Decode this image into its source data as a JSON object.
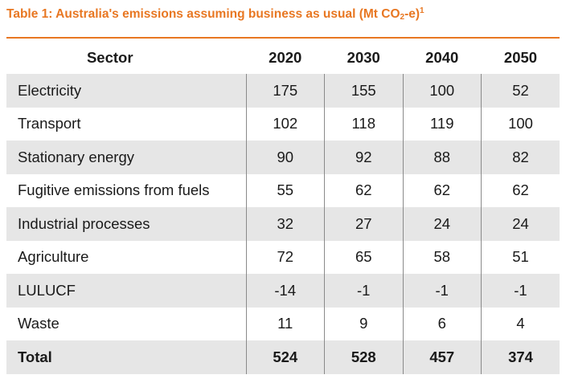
{
  "title": {
    "prefix": "Table 1: Australia's emissions assuming business as usual (Mt CO",
    "subscript": "2",
    "suffix": "-e)",
    "footnote": "1"
  },
  "table": {
    "headers": [
      "Sector",
      "2020",
      "2030",
      "2040",
      "2050"
    ],
    "rows": [
      {
        "sector": "Electricity",
        "values": [
          "175",
          "155",
          "100",
          "52"
        ]
      },
      {
        "sector": "Transport",
        "values": [
          "102",
          "118",
          "119",
          "100"
        ]
      },
      {
        "sector": "Stationary energy",
        "values": [
          "90",
          "92",
          "88",
          "82"
        ]
      },
      {
        "sector": "Fugitive emissions from fuels",
        "values": [
          "55",
          "62",
          "62",
          "62"
        ]
      },
      {
        "sector": "Industrial processes",
        "values": [
          "32",
          "27",
          "24",
          "24"
        ]
      },
      {
        "sector": "Agriculture",
        "values": [
          "72",
          "65",
          "58",
          "51"
        ]
      },
      {
        "sector": "LULUCF",
        "values": [
          "-14",
          "-1",
          "-1",
          "-1"
        ]
      },
      {
        "sector": "Waste",
        "values": [
          "11",
          "9",
          "6",
          "4"
        ]
      },
      {
        "sector": "Total",
        "values": [
          "524",
          "528",
          "457",
          "374"
        ]
      }
    ]
  },
  "colors": {
    "accent": "#e87722",
    "row_shade": "#e6e6e6"
  }
}
